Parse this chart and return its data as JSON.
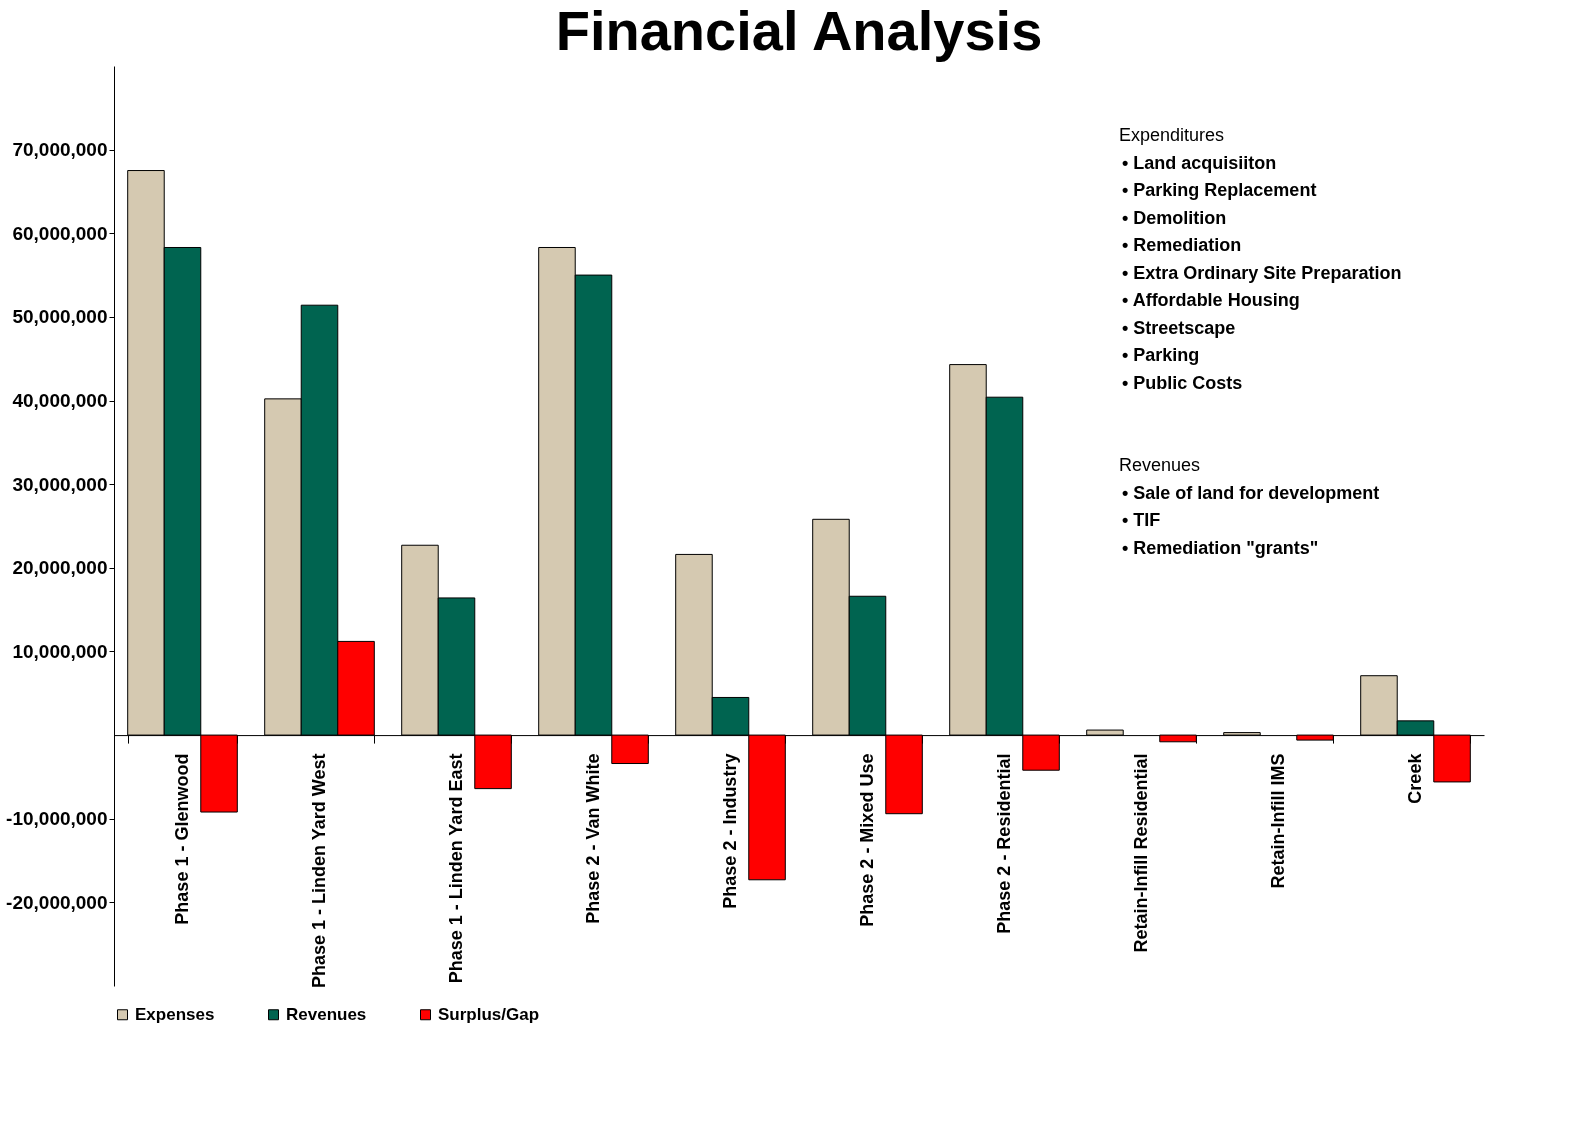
{
  "chart_data": {
    "type": "bar",
    "title": "Financial Analysis",
    "categories": [
      "Phase 1 - Glenwood",
      "Phase 1 - Linden Yard West",
      "Phase 1 - Linden Yard East",
      "Phase 2 - Van White",
      "Phase 2 - Industry",
      "Phase 2 - Mixed Use",
      "Phase 2 - Residential",
      "Retain-Infill Residential",
      "Retain-Infill IMS",
      "Creek"
    ],
    "series": [
      {
        "name": "Expenses",
        "color": "#d5c9b1",
        "values": [
          67500000,
          40200000,
          22700000,
          58300000,
          21600000,
          25800000,
          44300000,
          600000,
          300000,
          7100000
        ]
      },
      {
        "name": "Revenues",
        "color": "#006450",
        "values": [
          58300000,
          51400000,
          16400000,
          55000000,
          4500000,
          16600000,
          40400000,
          null,
          null,
          1700000
        ]
      },
      {
        "name": "Surplus/Gap",
        "color": "#ff0000",
        "values": [
          -9200000,
          11200000,
          -6400000,
          -3400000,
          -17300000,
          -9400000,
          -4200000,
          -800000,
          -600000,
          -5600000
        ]
      }
    ],
    "ylim": [
      -30000000,
      80000000
    ],
    "yticks": [
      {
        "value": -20000000,
        "label": "-20,000,000"
      },
      {
        "value": -10000000,
        "label": "-10,000,000"
      },
      {
        "value": 10000000,
        "label": "10,000,000"
      },
      {
        "value": 20000000,
        "label": "20,000,000"
      },
      {
        "value": 30000000,
        "label": "30,000,000"
      },
      {
        "value": 40000000,
        "label": "40,000,000"
      },
      {
        "value": 50000000,
        "label": "50,000,000"
      },
      {
        "value": 60000000,
        "label": "60,000,000"
      },
      {
        "value": 70000000,
        "label": "70,000,000"
      }
    ],
    "annotations": [
      "Expenditures\n• Land acquisiiton\n• Parking Replacement\n• Demolition\n• Remediation\n• Extra Ordinary Site Preparation\n• Affordable Housing\n• Streetscape\n• Parking\n• Public Costs",
      "Revenues\n• Sale of land for development\n• TIF\n• Remediation \"grants\""
    ],
    "legend": "bottom",
    "grid": false
  }
}
